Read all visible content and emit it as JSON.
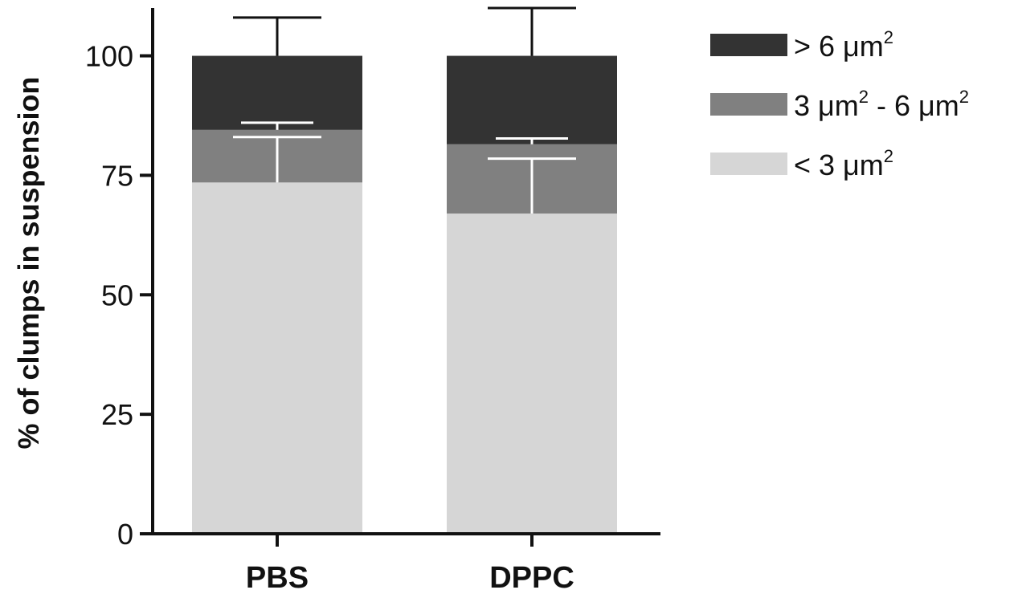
{
  "chart_data": {
    "type": "bar",
    "stacked": true,
    "categories": [
      "PBS",
      "DPPC"
    ],
    "ylabel": "% of clumps in suspension",
    "xlabel": "",
    "ylim": [
      0,
      110
    ],
    "yticks": [
      0,
      25,
      50,
      75,
      100
    ],
    "ytick_labels": [
      "0",
      "25",
      "50",
      "75",
      "100"
    ],
    "series": [
      {
        "name": "< 3 μm2",
        "name_parts": {
          "pre": "< 3 μm",
          "sup": "2",
          "mid": "",
          "sup2": ""
        },
        "color": "#d6d6d6",
        "values": [
          73.5,
          67
        ],
        "error": [
          9.5,
          11.5
        ]
      },
      {
        "name": "3 μm2 - 6 μm2",
        "name_parts": {
          "pre": "3 μm",
          "sup": "2",
          "mid": " - 6 μm",
          "sup2": "2"
        },
        "color": "#808080",
        "values": [
          11,
          14.5
        ],
        "error": [
          1.5,
          1.2
        ]
      },
      {
        "name": "> 6 μm2",
        "name_parts": {
          "pre": "> 6 μm",
          "sup": "2",
          "mid": "",
          "sup2": ""
        },
        "color": "#333333",
        "values": [
          15.5,
          18.5
        ],
        "error": [
          8,
          10
        ]
      }
    ],
    "legend_position": "top-right",
    "grid": false
  }
}
